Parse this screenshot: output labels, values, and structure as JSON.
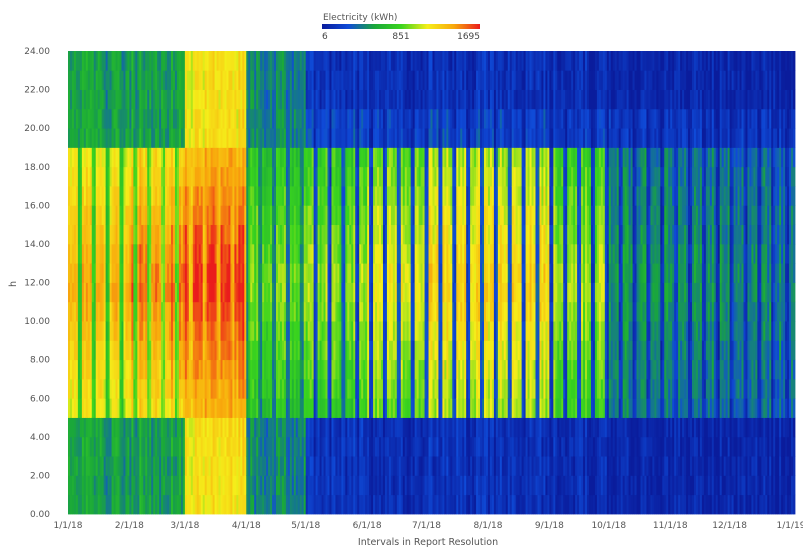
{
  "chart_data": {
    "type": "heatmap",
    "title": "",
    "xlabel": "Intervals in Report Resolution",
    "ylabel": "h",
    "x_ticks": [
      "1/1/18",
      "2/1/18",
      "3/1/18",
      "4/1/18",
      "5/1/18",
      "6/1/18",
      "7/1/18",
      "8/1/18",
      "9/1/18",
      "10/1/18",
      "11/1/18",
      "12/1/18",
      "1/1/19"
    ],
    "x_range": [
      "2018-01-01",
      "2019-01-03"
    ],
    "y_ticks": [
      "0.00",
      "2.00",
      "4.00",
      "6.00",
      "8.00",
      "10.00",
      "12.00",
      "14.00",
      "16.00",
      "18.00",
      "20.00",
      "22.00",
      "24.00"
    ],
    "ylim": [
      0,
      24
    ],
    "grid": false,
    "colorbar": {
      "label": "Electricity (kWh)",
      "min": 6,
      "mid": 851,
      "max": 1695,
      "tick_labels": [
        "6",
        "851",
        "1695"
      ],
      "colors": [
        "#0a1c9c",
        "#0f4bd8",
        "#1aa83a",
        "#3ad41e",
        "#f5ee1a",
        "#f8a90c",
        "#ea1c1c"
      ]
    },
    "periods": [
      {
        "name": "Jan 2018",
        "weekday_day": 1250,
        "weekday_night": 550,
        "weekend_day": 750,
        "weekend_night": 480
      },
      {
        "name": "Feb 2018",
        "weekday_day": 1400,
        "weekday_night": 560,
        "weekend_day": 900,
        "weekend_night": 520
      },
      {
        "name": "Mar 2018",
        "weekday_day": 1550,
        "weekday_night": 1200,
        "weekend_day": 1350,
        "weekend_night": 1150
      },
      {
        "name": "Apr 2018",
        "weekday_day": 850,
        "weekday_night": 450,
        "weekend_day": 450,
        "weekend_night": 400
      },
      {
        "name": "May 2018",
        "weekday_day": 900,
        "weekday_night": 150,
        "weekend_day": 250,
        "weekend_night": 120
      },
      {
        "name": "Jun 2018",
        "weekday_day": 1050,
        "weekday_night": 120,
        "weekend_day": 250,
        "weekend_night": 100
      },
      {
        "name": "Jul 2018",
        "weekday_day": 1150,
        "weekday_night": 140,
        "weekend_day": 280,
        "weekend_night": 110
      },
      {
        "name": "Aug 2018",
        "weekday_day": 1150,
        "weekday_night": 130,
        "weekend_day": 280,
        "weekend_night": 110
      },
      {
        "name": "Sep 2018",
        "weekday_day": 950,
        "weekday_night": 110,
        "weekend_day": 220,
        "weekend_night": 90
      },
      {
        "name": "Oct 2018",
        "weekday_day": 500,
        "weekday_night": 70,
        "weekend_day": 160,
        "weekend_night": 60
      },
      {
        "name": "Nov 2018",
        "weekday_day": 450,
        "weekday_night": 60,
        "weekend_day": 150,
        "weekend_night": 50
      },
      {
        "name": "Dec 2018",
        "weekday_day": 420,
        "weekday_night": 60,
        "weekend_day": 150,
        "weekend_night": 50
      }
    ]
  }
}
